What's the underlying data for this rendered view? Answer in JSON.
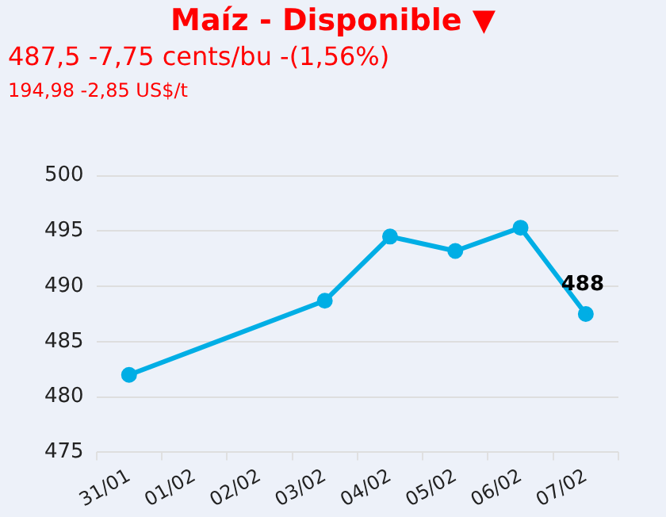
{
  "chart_data": {
    "type": "line",
    "title": "Maíz - Disponible ▼",
    "subtitle": "487,5 -7,75 cents/bu -(1,56%)",
    "annotations": [
      "194,98 -2,85 US$/t"
    ],
    "categories": [
      "31/01",
      "01/02",
      "02/02",
      "03/02",
      "04/02",
      "05/02",
      "06/02",
      "07/02"
    ],
    "series": [
      {
        "color": "#00aee5",
        "values": [
          482,
          null,
          null,
          488.7,
          494.5,
          493.2,
          495.3,
          487.5
        ],
        "value_labels": [
          null,
          null,
          null,
          null,
          null,
          null,
          null,
          "488"
        ]
      }
    ],
    "ylim": [
      475,
      500
    ],
    "yticks": [
      475,
      480,
      485,
      490,
      495,
      500
    ],
    "grid": "y",
    "legend": false,
    "marker": "circle",
    "line_style": "solid"
  }
}
